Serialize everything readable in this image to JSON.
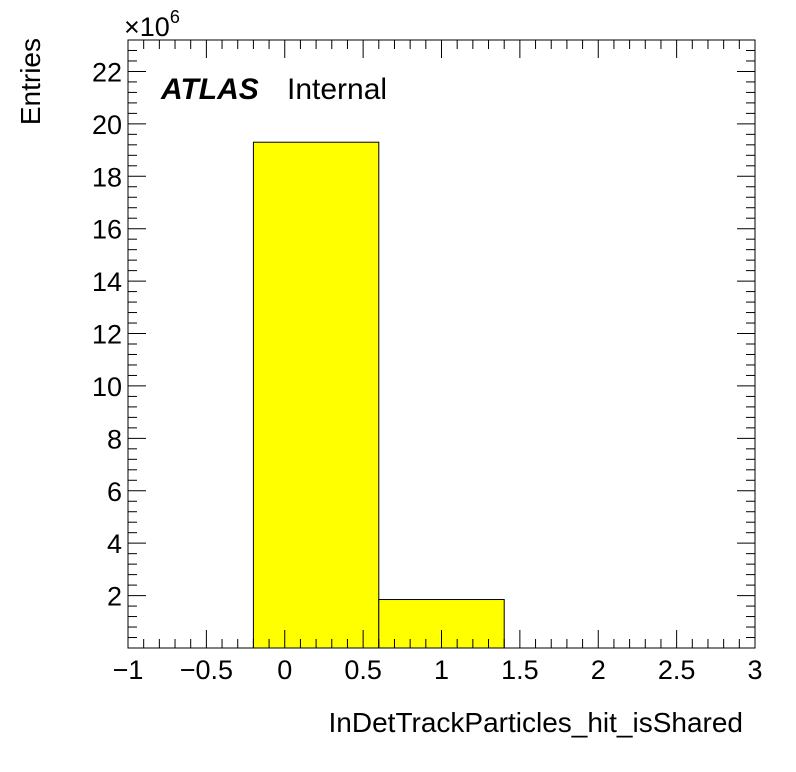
{
  "chart_data": {
    "type": "bar",
    "histogram": true,
    "bins": [
      {
        "x_low": -0.2,
        "x_high": 0.6,
        "value": 19300000
      },
      {
        "x_low": 0.6,
        "x_high": 1.4,
        "value": 1850000
      }
    ],
    "xlabel": "InDetTrackParticles_hit_isShared",
    "ylabel": "Entries",
    "xlim": [
      -1,
      3
    ],
    "ylim": [
      0,
      23200000
    ],
    "x_ticks": [
      -1,
      -0.5,
      0,
      0.5,
      1,
      1.5,
      2,
      2.5,
      3
    ],
    "x_tick_labels": [
      "−1",
      "−0.5",
      "0",
      "0.5",
      "1",
      "1.5",
      "2",
      "2.5",
      "3"
    ],
    "y_ticks": [
      2,
      4,
      6,
      8,
      10,
      12,
      14,
      16,
      18,
      20,
      22
    ],
    "y_tick_labels": [
      "2",
      "4",
      "6",
      "8",
      "10",
      "12",
      "14",
      "16",
      "18",
      "20",
      "22"
    ],
    "y_multiplier_base": "×10",
    "y_multiplier_exponent": "6",
    "fill_color": "#ffff00",
    "edge_color": "#000000",
    "grid": false,
    "legend": false
  },
  "labels": {
    "atlas": "ATLAS",
    "internal": "Internal"
  }
}
